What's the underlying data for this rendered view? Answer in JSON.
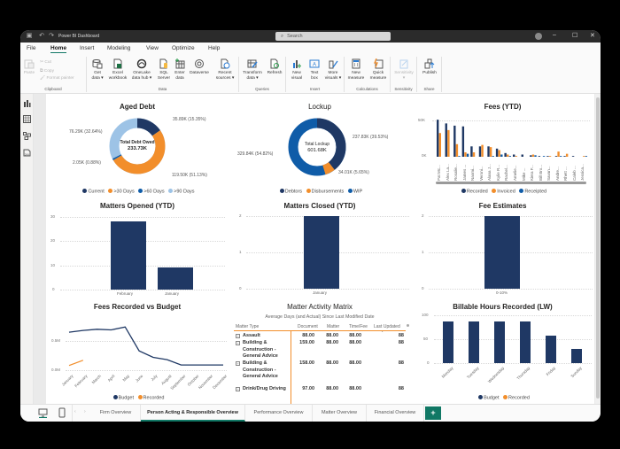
{
  "window": {
    "title": "Power BI Dashboard",
    "search_placeholder": "Search",
    "controls": {
      "minimize": "–",
      "maximize": "☐",
      "close": "✕"
    }
  },
  "menu": [
    "File",
    "Home",
    "Insert",
    "Modeling",
    "View",
    "Optimize",
    "Help"
  ],
  "ribbon": {
    "clipboard": {
      "paste": "Paste",
      "cut": "Cut",
      "copy": "Copy",
      "format_painter": "Format painter",
      "label": "Clipboard"
    },
    "data": {
      "label": "Data",
      "buttons": [
        {
          "l1": "Get",
          "l2": "data ▾"
        },
        {
          "l1": "Excel",
          "l2": "workbook"
        },
        {
          "l1": "OneLake",
          "l2": "data hub ▾"
        },
        {
          "l1": "SQL",
          "l2": "Server"
        },
        {
          "l1": "Enter",
          "l2": "data"
        },
        {
          "l1": "Dataverse",
          "l2": ""
        },
        {
          "l1": "Recent",
          "l2": "sources ▾"
        }
      ]
    },
    "queries": {
      "label": "Queries",
      "buttons": [
        {
          "l1": "Transform",
          "l2": "data ▾"
        },
        {
          "l1": "Refresh",
          "l2": ""
        }
      ]
    },
    "insert": {
      "label": "Insert",
      "buttons": [
        {
          "l1": "New",
          "l2": "visual"
        },
        {
          "l1": "Text",
          "l2": "box"
        },
        {
          "l1": "More",
          "l2": "visuals ▾"
        }
      ]
    },
    "calculations": {
      "label": "Calculations",
      "buttons": [
        {
          "l1": "New",
          "l2": "measure"
        },
        {
          "l1": "Quick",
          "l2": "measure"
        }
      ]
    },
    "sensitivity": {
      "label": "Sensitivity",
      "buttons": [
        {
          "l1": "Sensitivity",
          "l2": "▾"
        }
      ]
    },
    "share": {
      "label": "Share",
      "buttons": [
        {
          "l1": "Publish",
          "l2": ""
        }
      ]
    }
  },
  "colors": {
    "navy": "#1f3864",
    "orange": "#f28e2b",
    "blue": "#0f5ca8",
    "lightblue": "#9dc3e6",
    "accent": "#117865"
  },
  "visuals": {
    "aged_debt": {
      "title": "Aged Debt",
      "center_label": "Total Debt Owed",
      "center_value": "233.73K",
      "labels": [
        "35.89K (15.35%)",
        "119.50K (51.13%)",
        "2.05K (0.88%)",
        "76.29K (32.64%)"
      ],
      "legend": [
        "Current",
        ">30 Days",
        ">60 Days",
        ">90 Days"
      ]
    },
    "lockup": {
      "title": "Lockup",
      "center_label": "Total Lockup",
      "center_value": "601.68K",
      "labels": [
        "237.83K (39.53%)",
        "34.01K (5.65%)",
        "329.84K (54.82%)"
      ],
      "legend": [
        "Debtors",
        "Disbursements",
        "WIP"
      ]
    },
    "fees_ytd": {
      "title": "Fees (YTD)",
      "yticks": [
        "50K",
        "0K"
      ],
      "legend": [
        "Recorded",
        "Invoiced",
        "Receipted"
      ]
    },
    "matters_opened": {
      "title": "Matters Opened (YTD)",
      "yticks": [
        "30",
        "20",
        "10",
        "0"
      ]
    },
    "matters_closed": {
      "title": "Matters Closed (YTD)",
      "yticks": [
        "2",
        "1",
        "0"
      ]
    },
    "fee_estimates": {
      "title": "Fee Estimates",
      "yticks": [
        "2",
        "1",
        "0"
      ]
    },
    "fees_vs_budget": {
      "title": "Fees Recorded vs Budget",
      "yticks": [
        "0.5M",
        "0.0M"
      ],
      "legend": [
        "Budget",
        "Recorded"
      ]
    },
    "matrix": {
      "title": "Matter Activity Matrix",
      "subtitle": "Average Days (and Actual) Since Last Modified Date",
      "headers": [
        "Matter Type",
        "Document",
        "Matter",
        "Time/Fee",
        "Last Updated"
      ],
      "rows": [
        {
          "type": "Assault",
          "document": "88.00",
          "matter": "88.00",
          "timefee": "88.00",
          "last": "88"
        },
        {
          "type": "Building & Construction - General Advice",
          "document": "159.00",
          "matter": "88.00",
          "timefee": "88.00",
          "last": "88"
        },
        {
          "type": "Building & Construction - General Advice",
          "document": "158.00",
          "matter": "88.00",
          "timefee": "88.00",
          "last": "88"
        },
        {
          "type": "Drink/Drug Driving",
          "document": "97.00",
          "matter": "88.00",
          "timefee": "88.00",
          "last": "88"
        }
      ]
    },
    "billable_hours": {
      "title": "Billable Hours Recorded (LW)",
      "yticks": [
        "100",
        "50",
        "0"
      ],
      "legend": [
        "Budget",
        "Recorded"
      ]
    }
  },
  "chart_data": [
    {
      "type": "pie",
      "title": "Aged Debt",
      "categories": [
        "Current",
        ">30 Days",
        ">60 Days",
        ">90 Days"
      ],
      "values": [
        35.89,
        119.5,
        2.05,
        76.29
      ],
      "percent": [
        15.35,
        51.13,
        0.88,
        32.64
      ],
      "total": "233.73K"
    },
    {
      "type": "pie",
      "title": "Lockup",
      "categories": [
        "Debtors",
        "Disbursements",
        "WIP"
      ],
      "values": [
        237.83,
        34.01,
        329.84
      ],
      "percent": [
        39.53,
        5.65,
        54.82
      ],
      "total": "601.68K"
    },
    {
      "type": "bar",
      "title": "Fees (YTD)",
      "categories": [
        "Pat Mc...",
        "Alex La...",
        "Rosalie...",
        "James ...",
        "Naomi...",
        "Veroni...",
        "Alana J...",
        "Kylie R...",
        "Rachel...",
        "Amelie...",
        "Mike ...",
        "Kiera F...",
        "Bill Bro...",
        "Savan...",
        "Andre...",
        "Rhett ...",
        "Caleb ...",
        "Jessica..."
      ],
      "series": [
        {
          "name": "Recorded",
          "values": [
            50,
            45,
            42,
            41,
            14,
            14,
            14,
            11,
            5,
            3,
            3,
            2,
            1,
            1,
            1,
            1,
            1,
            0
          ]
        },
        {
          "name": "Invoiced",
          "values": [
            32,
            36,
            17,
            6,
            6,
            16,
            13,
            9,
            3,
            1,
            0,
            3,
            0,
            1,
            7,
            4,
            0,
            1
          ]
        },
        {
          "name": "Receipted",
          "values": [
            0,
            0,
            1,
            4,
            0,
            0,
            1,
            3,
            1,
            0,
            0,
            2,
            1,
            0,
            1,
            0,
            0,
            1
          ]
        }
      ],
      "yticks": [
        "0K",
        "50K"
      ],
      "ylim": [
        0,
        55
      ]
    },
    {
      "type": "bar",
      "title": "Matters Opened (YTD)",
      "categories": [
        "February",
        "January"
      ],
      "values": [
        28,
        9
      ],
      "ylim": [
        0,
        30
      ]
    },
    {
      "type": "bar",
      "title": "Matters Closed (YTD)",
      "categories": [
        "January"
      ],
      "values": [
        2
      ],
      "ylim": [
        0,
        2
      ]
    },
    {
      "type": "bar",
      "title": "Fee Estimates",
      "categories": [
        "0-10%"
      ],
      "values": [
        2
      ],
      "ylim": [
        0,
        2
      ]
    },
    {
      "type": "line",
      "title": "Fees Recorded vs Budget",
      "categories": [
        "January",
        "February",
        "March",
        "April",
        "May",
        "June",
        "July",
        "August",
        "September",
        "October",
        "November",
        "December"
      ],
      "series": [
        {
          "name": "Budget",
          "values": [
            0.65,
            0.68,
            0.7,
            0.69,
            0.74,
            0.33,
            0.22,
            0.18,
            0.09,
            0.09,
            0.09,
            0.09
          ]
        },
        {
          "name": "Recorded",
          "values": [
            0.08,
            0.17
          ]
        }
      ],
      "yticks": [
        "0.0M",
        "0.5M"
      ],
      "ylim": [
        0,
        0.8
      ]
    },
    {
      "type": "bar",
      "title": "Billable Hours Recorded (LW)",
      "categories": [
        "Monday",
        "Tuesday",
        "Wednesday",
        "Thursday",
        "Friday",
        "Sunday"
      ],
      "series": [
        {
          "name": "Budget",
          "values": [
            87,
            87,
            87,
            87,
            58,
            29
          ]
        },
        {
          "name": "Recorded",
          "values": []
        }
      ],
      "yticks": [
        "0",
        "50",
        "100"
      ],
      "ylim": [
        0,
        100
      ]
    }
  ],
  "tabs": {
    "pages": [
      "Firm Overview",
      "Person Acting & Responsible Overview",
      "Performance Overview",
      "Matter Overview",
      "Financial Overview"
    ],
    "active_index": 1,
    "add_label": "+"
  }
}
